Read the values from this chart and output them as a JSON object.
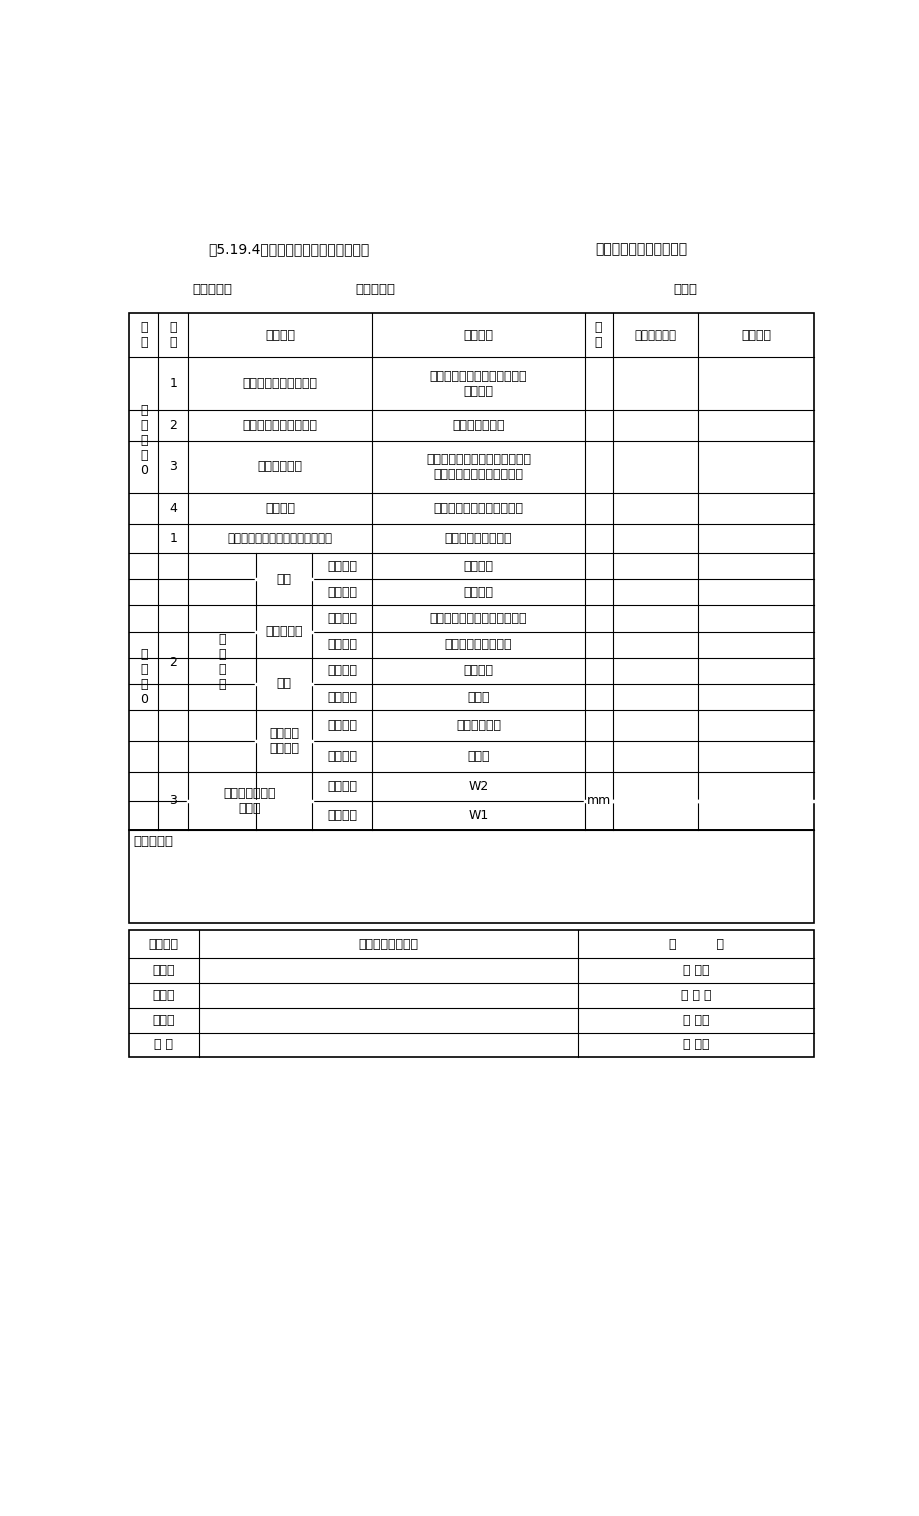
{
  "title1": "表5.19.4溶剂型涂料涂饰工程（色漆）",
  "title2": "分项工程质量检验评定表",
  "sub1": "工程编号：",
  "sub2": "分项名称：",
  "sub3": "表号：",
  "header_cols": [
    "类\n别",
    "序\n号",
    "检查项目",
    "质量标准",
    "单\n位",
    "质量检驼结果",
    "单项评定"
  ],
  "zk_label": "主\n控\n项\n目\n0",
  "gp_label": "般\n项\n目\n0",
  "rows_main": [
    {
      "seq": "1",
      "item": "涂料品种、型号和性能",
      "std": "应符合设计要求祠现行有关标\n准的规定"
    },
    {
      "seq": "2",
      "item": "涂料颜色、光泽、图案",
      "std": "应符合设计要求"
    },
    {
      "seq": "3",
      "item": "涂饰综合质量",
      "std": "涂料涂饰应均匀、粘结牢固，不\n得漏涂、透底、起皮和反锈"
    },
    {
      "seq": "4",
      "item": "基层处理",
      "std": "应符合现行有关标准的规定"
    }
  ],
  "gen_row1": {
    "seq": "1",
    "item": "涂层与其他装修材料和设备衔接处",
    "std": "应吻合，界面应清晰"
  },
  "gen_row2_label": "涂\n饰\n质\n量",
  "gen_row2_seq": "2",
  "gen_sub": [
    {
      "group": "颜色",
      "rows": [
        {
          "level": "普通涂饰",
          "std": "均匀一致"
        },
        {
          "level": "高级涂饰",
          "std": "均匀一致"
        }
      ]
    },
    {
      "group": "光泽、光滑",
      "rows": [
        {
          "level": "普通涂饰",
          "std": "光泽基本均匀、光滑无挡手感"
        },
        {
          "level": "高级涂饰",
          "std": "光泽均匀一致、光滑"
        }
      ]
    },
    {
      "group": "刷纹",
      "rows": [
        {
          "level": "普通涂饰",
          "std": "刷纹通顺"
        },
        {
          "level": "高级涂饰",
          "std": "无刷纹"
        }
      ]
    },
    {
      "group": "裹棱、流\n坠、皱皮",
      "rows": [
        {
          "level": "普通涂饰",
          "std": "明显处不允许"
        },
        {
          "level": "高级涂饰",
          "std": "不允许"
        }
      ]
    }
  ],
  "gen_row3": {
    "seq": "3",
    "item": "装饰线、分色线\n直线度",
    "rows": [
      {
        "level": "普通涂饰",
        "std": "W2"
      },
      {
        "level": "高级涂饰",
        "std": "W1"
      }
    ],
    "unit": "mm"
  },
  "conclusion_label": "验收结论：",
  "btbl_header": [
    "质检机构",
    "质量检验评定意见",
    "签          名"
  ],
  "btbl_rows": [
    "施工队",
    "项目部",
    "质检部",
    "监 理"
  ],
  "btbl_dates": [
    "年 月日",
    "年 月 日",
    "年 月日",
    "年 月日"
  ],
  "bg_color": "#ffffff",
  "line_color": "#000000",
  "font_color": "#000000",
  "figsize": [
    9.2,
    15.16
  ],
  "dpi": 100
}
